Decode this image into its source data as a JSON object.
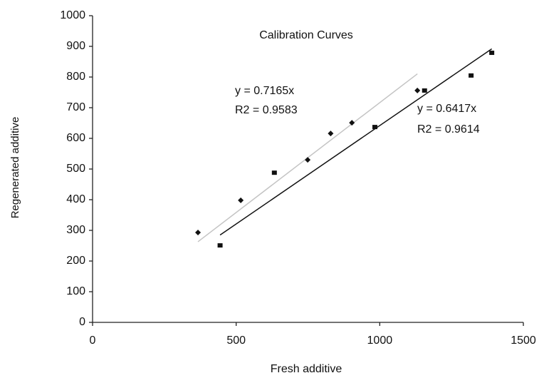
{
  "chart_data": {
    "type": "scatter",
    "title": "Calibration Curves",
    "x_label": "Fresh additive",
    "y_label": "Regenerated additive",
    "xlim": [
      0,
      1500
    ],
    "xticks": [
      0,
      500,
      1000,
      1500
    ],
    "ylim": [
      0,
      1000
    ],
    "yticks": [
      0,
      100,
      200,
      300,
      400,
      500,
      600,
      700,
      800,
      900,
      1000
    ],
    "grid": false,
    "series": [
      {
        "marker": "diamond",
        "color": "#111",
        "x": [
          367,
          516,
          749,
          829,
          903,
          1131
        ],
        "values": [
          293,
          398,
          530,
          616,
          651,
          756
        ],
        "trendline": {
          "slope": 0.7165,
          "equation": "y = 0.7165x",
          "r2": "R2 = 0.9583",
          "color": "#c4c4c4"
        }
      },
      {
        "marker": "square",
        "color": "#111",
        "x": [
          444,
          633,
          983,
          1156,
          1318,
          1390
        ],
        "values": [
          251,
          488,
          637,
          756,
          805,
          879
        ],
        "trendline": {
          "slope": 0.6417,
          "equation": "y = 0.6417x",
          "r2": "R2 = 0.9614",
          "color": "#111"
        }
      }
    ]
  }
}
